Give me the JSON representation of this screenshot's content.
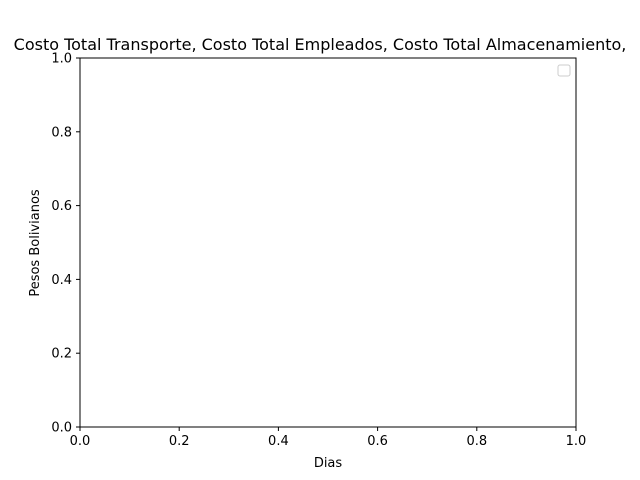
{
  "chart_data": {
    "type": "line",
    "title": "Costo Total Transporte, Costo Total Empleados, Costo Total Almacenamiento,",
    "xlabel": "Dias",
    "ylabel": "Pesos Bolivianos",
    "xlim": [
      0.0,
      1.0
    ],
    "ylim": [
      0.0,
      1.0
    ],
    "x_ticks": [
      "0.0",
      "0.2",
      "0.4",
      "0.6",
      "0.8",
      "1.0"
    ],
    "y_ticks": [
      "0.0",
      "0.2",
      "0.4",
      "0.6",
      "0.8",
      "1.0"
    ],
    "series": [],
    "grid": false,
    "legend": {
      "position": "top-right",
      "entries": []
    },
    "colors": {
      "axes": "#000000",
      "background": "#ffffff",
      "legend_border": "#cccccc"
    }
  }
}
